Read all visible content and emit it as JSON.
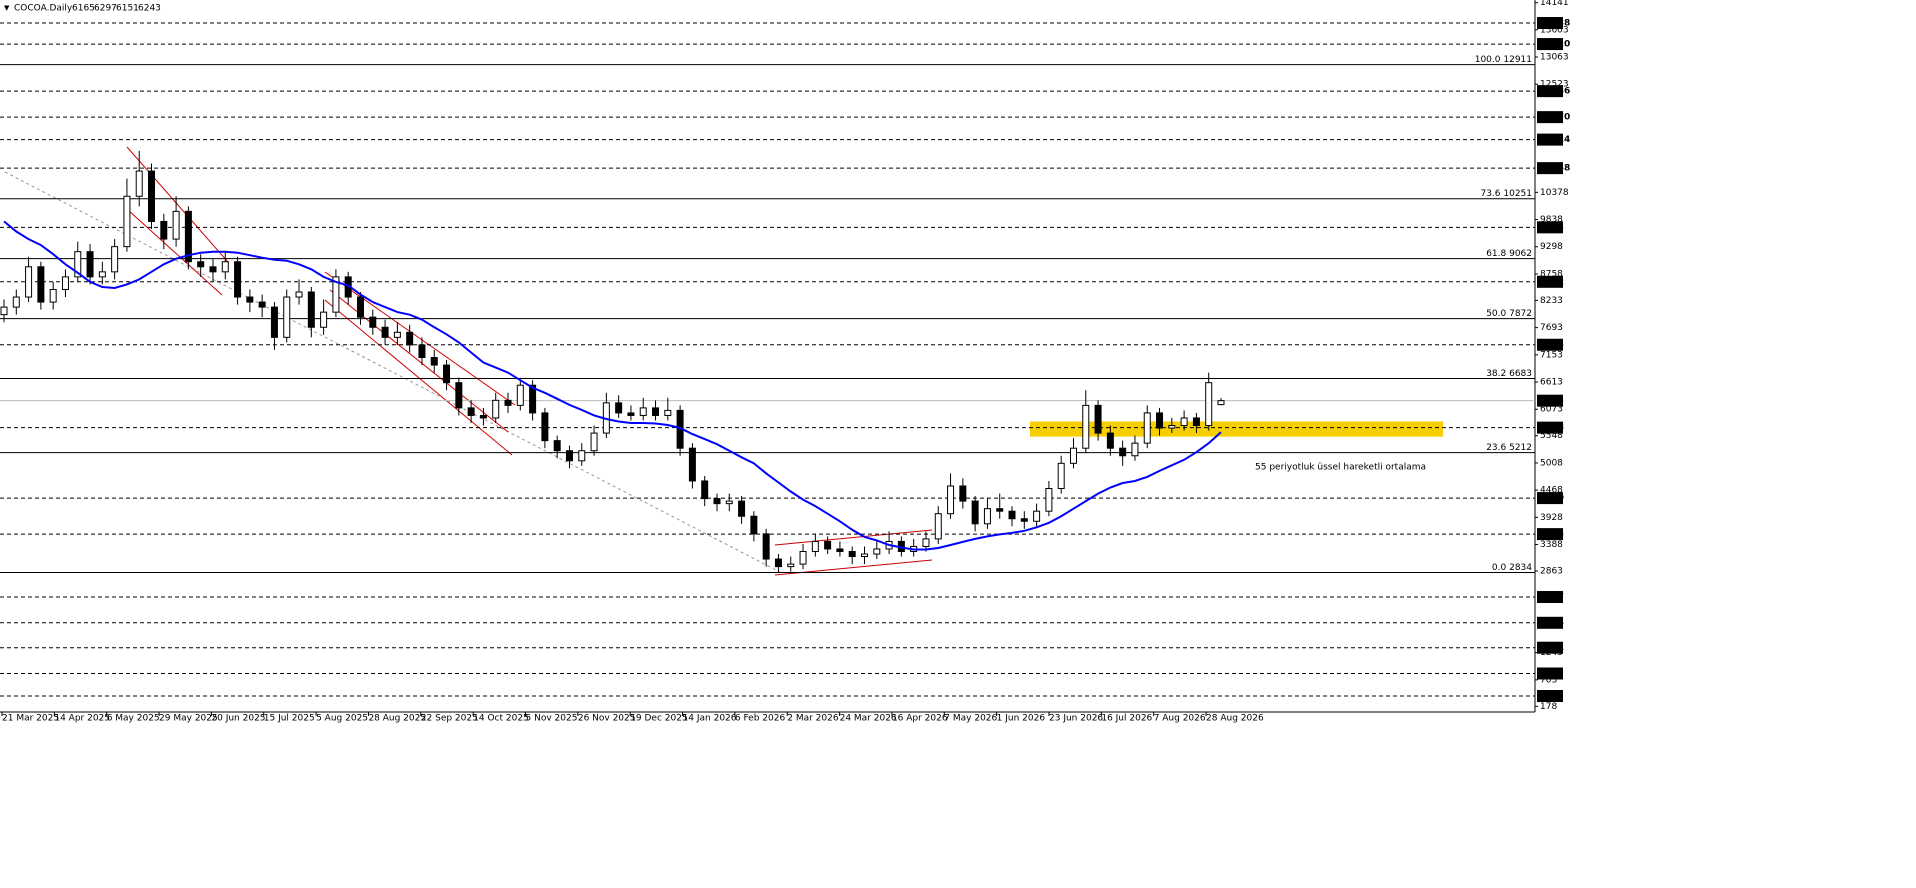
{
  "chart_data": {
    "type": "candlestick",
    "title": "COCOA.Daily",
    "open": [
      7950,
      8100,
      8300,
      8900,
      8200,
      8450,
      8700,
      9200,
      8700,
      8800,
      9300,
      10300,
      10800,
      9800,
      9450,
      10000,
      9000,
      8900,
      8800,
      9000,
      8300,
      8200,
      8100,
      7500,
      8300,
      8400,
      7700,
      8000,
      8700,
      8300,
      7900,
      7700,
      7500,
      7600,
      7350,
      7100,
      6950,
      6600,
      6100,
      5950,
      5900,
      6250,
      6150,
      6550,
      6000,
      5450,
      5250,
      5050,
      5250,
      5600,
      6200,
      6000,
      5950,
      6100,
      5950,
      6050,
      5300,
      4650,
      4300,
      4200,
      4250,
      3950,
      3600,
      3100,
      2950,
      3000,
      3250,
      3450,
      3300,
      3250,
      3150,
      3200,
      3300,
      3450,
      3250,
      3350,
      3500,
      4000,
      4550,
      4250,
      3800,
      4100,
      4050,
      3900,
      3850,
      4050,
      4500,
      5000,
      5300,
      6150,
      5600,
      5300,
      5150,
      5400,
      6000,
      5700,
      5750,
      5900,
      5750,
      6165
    ],
    "high": [
      8250,
      8450,
      9100,
      9000,
      8600,
      8850,
      9400,
      9350,
      9000,
      9450,
      10650,
      11200,
      10950,
      9950,
      10300,
      10100,
      9150,
      9050,
      9200,
      9100,
      8450,
      8350,
      8200,
      8450,
      8650,
      8500,
      8250,
      8850,
      8800,
      8400,
      8050,
      7850,
      7800,
      7750,
      7500,
      7250,
      7050,
      6700,
      6250,
      6100,
      6400,
      6400,
      6700,
      6650,
      6100,
      5550,
      5350,
      5400,
      5750,
      6400,
      6350,
      6150,
      6300,
      6250,
      6300,
      6150,
      5400,
      4750,
      4400,
      4400,
      4350,
      4050,
      3700,
      3200,
      3150,
      3400,
      3600,
      3550,
      3450,
      3350,
      3350,
      3450,
      3650,
      3550,
      3500,
      3650,
      4150,
      4800,
      4700,
      4350,
      4300,
      4400,
      4150,
      4050,
      4200,
      4650,
      5150,
      5500,
      6450,
      6250,
      5750,
      5450,
      5550,
      6150,
      6100,
      5900,
      6050,
      6000,
      6800,
      6297
    ],
    "low": [
      7800,
      7950,
      8200,
      8050,
      8050,
      8300,
      8600,
      8550,
      8550,
      8650,
      9200,
      10100,
      9650,
      9250,
      9300,
      8850,
      8700,
      8600,
      8650,
      8150,
      8000,
      7900,
      7250,
      7400,
      8150,
      7500,
      7550,
      7900,
      8150,
      7750,
      7550,
      7350,
      7350,
      7200,
      6950,
      6800,
      6450,
      5950,
      5800,
      5750,
      5800,
      6000,
      6050,
      5850,
      5300,
      5100,
      4900,
      4950,
      5150,
      5500,
      5900,
      5850,
      5850,
      5850,
      5850,
      5150,
      4500,
      4150,
      4050,
      4050,
      3800,
      3450,
      2950,
      2834,
      2850,
      2900,
      3150,
      3200,
      3150,
      3000,
      3000,
      3100,
      3200,
      3150,
      3150,
      3250,
      3400,
      3900,
      4100,
      3650,
      3700,
      3900,
      3750,
      3700,
      3750,
      3950,
      4400,
      4900,
      5200,
      5450,
      5150,
      4950,
      5050,
      5300,
      5550,
      5600,
      5650,
      5600,
      5650,
      6151
    ],
    "close": [
      8100,
      8300,
      8900,
      8200,
      8450,
      8700,
      9200,
      8700,
      8800,
      9300,
      10300,
      10800,
      9800,
      9450,
      10000,
      9000,
      8900,
      8800,
      9000,
      8300,
      8200,
      8100,
      7500,
      8300,
      8400,
      7700,
      8000,
      8700,
      8300,
      7900,
      7700,
      7500,
      7600,
      7350,
      7100,
      6950,
      6600,
      6100,
      5950,
      5900,
      6250,
      6150,
      6550,
      6000,
      5450,
      5250,
      5050,
      5250,
      5600,
      6200,
      6000,
      5950,
      6100,
      5950,
      6050,
      5300,
      4650,
      4300,
      4200,
      4250,
      3950,
      3600,
      3100,
      2950,
      3000,
      3250,
      3450,
      3300,
      3250,
      3150,
      3200,
      3300,
      3450,
      3250,
      3350,
      3500,
      4000,
      4550,
      4250,
      3800,
      4100,
      4050,
      3900,
      3850,
      4050,
      4500,
      5000,
      5300,
      6150,
      5600,
      5300,
      5150,
      5400,
      6000,
      5700,
      5750,
      5900,
      5750,
      6600,
      6243
    ],
    "ema": {
      "color": "#0000ff",
      "values": [
        9800,
        9600,
        9450,
        9330,
        9150,
        8950,
        8780,
        8600,
        8500,
        8480,
        8550,
        8650,
        8800,
        8950,
        9060,
        9130,
        9180,
        9200,
        9200,
        9180,
        9130,
        9080,
        9040,
        9020,
        8950,
        8850,
        8700,
        8600,
        8530,
        8350,
        8200,
        8100,
        8000,
        7950,
        7850,
        7700,
        7560,
        7400,
        7200,
        7000,
        6900,
        6800,
        6650,
        6500,
        6400,
        6280,
        6160,
        6060,
        5950,
        5880,
        5830,
        5800,
        5800,
        5790,
        5760,
        5700,
        5580,
        5480,
        5380,
        5250,
        5120,
        5000,
        4800,
        4620,
        4440,
        4280,
        4150,
        4000,
        3850,
        3680,
        3540,
        3470,
        3380,
        3330,
        3290,
        3290,
        3320,
        3380,
        3440,
        3500,
        3550,
        3590,
        3620,
        3660,
        3730,
        3820,
        3950,
        4100,
        4250,
        4400,
        4520,
        4610,
        4650,
        4730,
        4850,
        4960,
        5070,
        5220,
        5400,
        5620
      ]
    },
    "annotation": "55 periyotluk üssel hareketli ortalama",
    "highlight_zone": {
      "low": 5530,
      "high": 5830,
      "color": "#f7cf00"
    },
    "ylim": [
      178,
      14141
    ],
    "yticks": [
      14141,
      13603,
      13063,
      12523,
      10378,
      9838,
      9298,
      8758,
      8233,
      7693,
      7153,
      6613,
      6073,
      5548,
      5008,
      4468,
      3928,
      3388,
      2863,
      1243,
      703,
      178
    ],
    "levels": [
      13738,
      13320,
      12386,
      11870,
      11424,
      10858,
      9683,
      8602,
      7353,
      5708,
      4310,
      3595,
      2347,
      1835,
      1341,
      829,
      382
    ],
    "fib_levels": [
      {
        "value": 12911,
        "label": "100.0 12911"
      },
      {
        "value": 10251,
        "label": "73.6 10251"
      },
      {
        "value": 9062,
        "label": "61.8 9062"
      },
      {
        "value": 7872,
        "label": "50.0 7872"
      },
      {
        "value": 6683,
        "label": "38.2 6683"
      },
      {
        "value": 5212,
        "label": "23.6 5212"
      },
      {
        "value": 2834,
        "label": "0.0 2834"
      }
    ],
    "xticks": [
      "21 Mar 2025",
      "14 Apr 2025",
      "6 May 2025",
      "29 May 2025",
      "20 Jun 2025",
      "15 Jul 2025",
      "5 Aug 2025",
      "28 Aug 2025",
      "22 Sep 2025",
      "14 Oct 2025",
      "5 Nov 2025",
      "26 Nov 2025",
      "19 Dec 2025",
      "14 Jan 2026",
      "6 Feb 2026",
      "2 Mar 2026",
      "24 Mar 2026",
      "16 Apr 2026",
      "7 May 2026",
      "1 Jun 2026",
      "23 Jun 2026",
      "16 Jul 2026",
      "7 Aug 2026",
      "28 Aug 2026"
    ]
  }
}
